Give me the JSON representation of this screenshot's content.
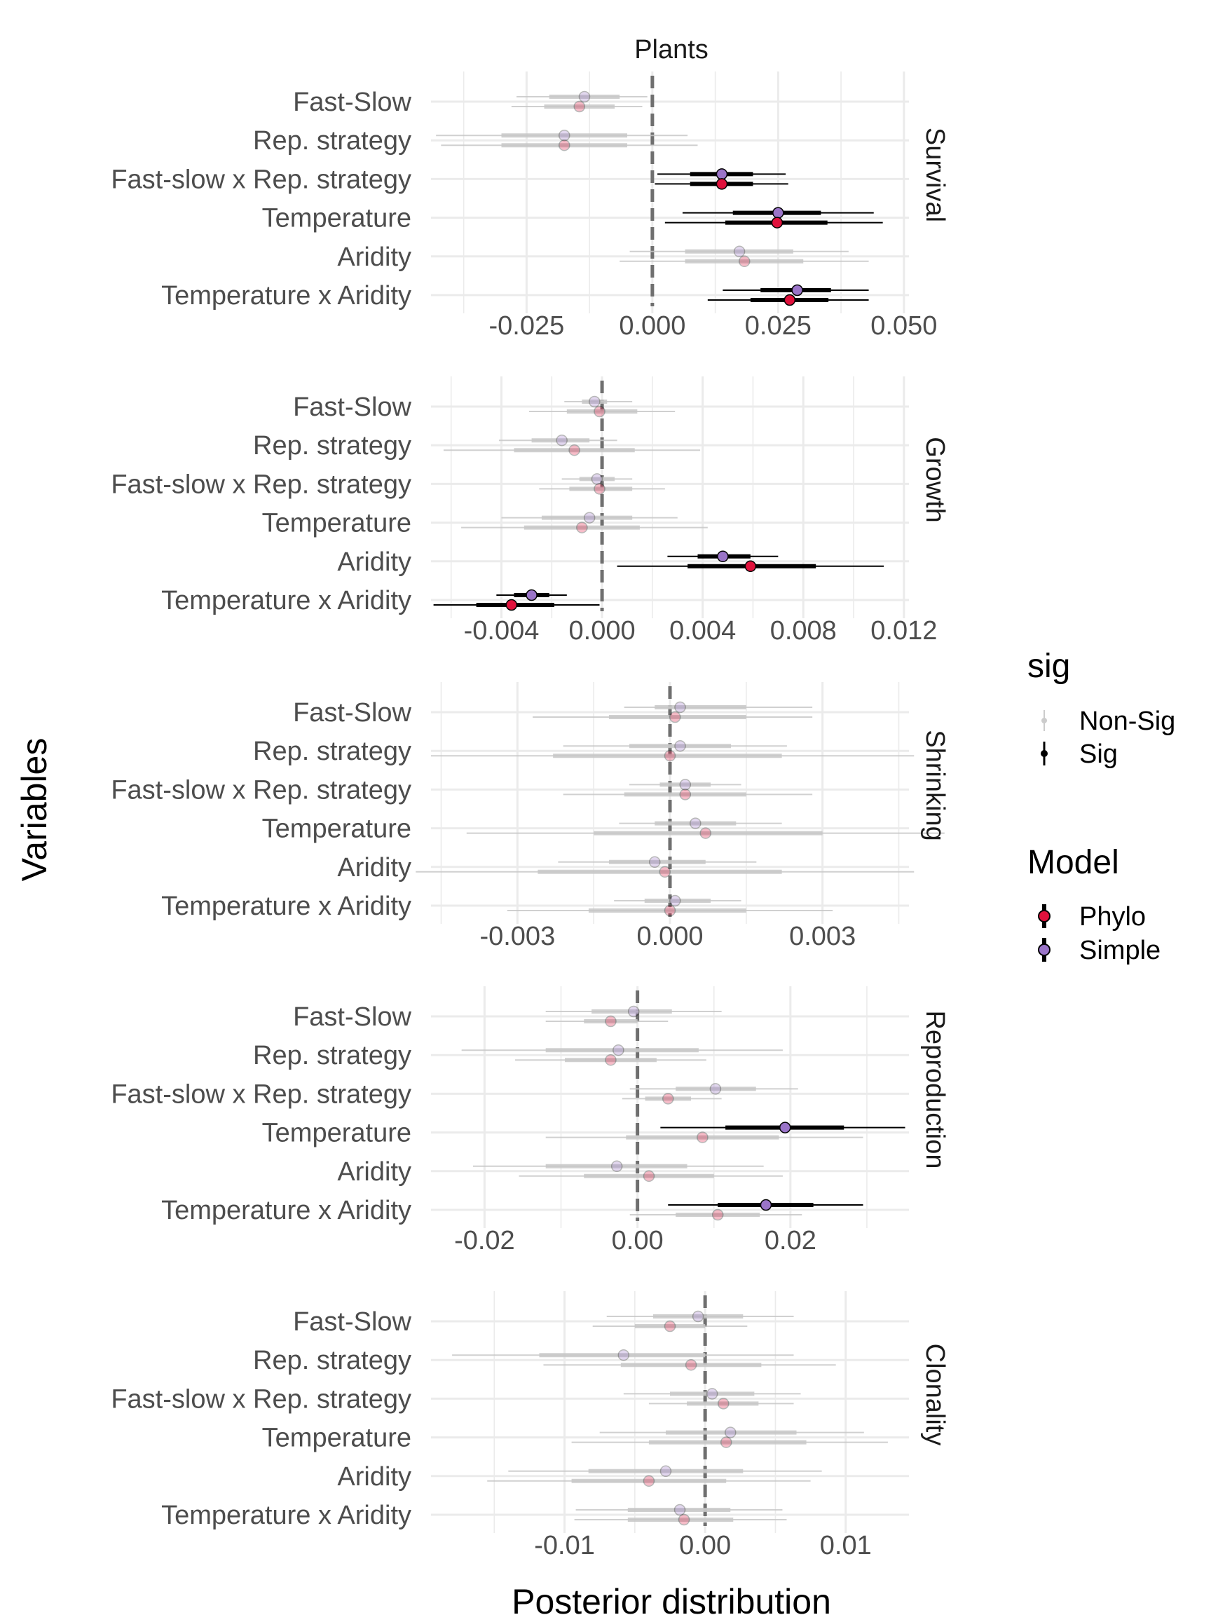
{
  "chart_data": {
    "type": "scatter",
    "title": "Plants",
    "xlabel": "Posterior distribution",
    "ylabel": "Variables",
    "variables": [
      "Fast-Slow",
      "Rep. strategy",
      "Fast-slow x Rep. strategy",
      "Temperature",
      "Aridity",
      "Temperature x Aridity"
    ],
    "legend": {
      "sig": {
        "title": "sig",
        "entries": [
          "Non-Sig",
          "Sig"
        ]
      },
      "model": {
        "title": "Model",
        "entries": [
          {
            "name": "Phylo",
            "color": "#e0113c"
          },
          {
            "name": "Simple",
            "color": "#9a74c8"
          }
        ]
      }
    },
    "panels": [
      {
        "facet": "Survival",
        "xlim": [
          -0.044,
          0.051
        ],
        "ticks": [
          -0.025,
          0,
          0.025,
          0.05
        ],
        "tick_labels": [
          "-0.025",
          "0.000",
          "0.025",
          "0.050"
        ],
        "rows": [
          {
            "model": "Simple",
            "sig": false,
            "values": [
              -0.0135,
              -0.0205,
              -0.0065,
              -0.027,
              -0.001
            ]
          },
          {
            "model": "Phylo",
            "sig": false,
            "values": [
              -0.0145,
              -0.0215,
              -0.0075,
              -0.028,
              -0.002
            ]
          },
          {
            "model": "Simple",
            "sig": false,
            "values": [
              -0.0175,
              -0.03,
              -0.005,
              -0.043,
              0.007
            ]
          },
          {
            "model": "Phylo",
            "sig": false,
            "values": [
              -0.0175,
              -0.03,
              -0.005,
              -0.042,
              0.009
            ]
          },
          {
            "model": "Simple",
            "sig": true,
            "values": [
              0.0138,
              0.0075,
              0.02,
              0.001,
              0.0265
            ]
          },
          {
            "model": "Phylo",
            "sig": true,
            "values": [
              0.0138,
              0.0075,
              0.02,
              0.0005,
              0.027
            ]
          },
          {
            "model": "Simple",
            "sig": true,
            "values": [
              0.025,
              0.016,
              0.0335,
              0.006,
              0.044
            ]
          },
          {
            "model": "Phylo",
            "sig": true,
            "values": [
              0.0248,
              0.0145,
              0.0348,
              0.0025,
              0.0458
            ]
          },
          {
            "model": "Simple",
            "sig": false,
            "values": [
              0.0173,
              0.0065,
              0.028,
              -0.0045,
              0.039
            ]
          },
          {
            "model": "Phylo",
            "sig": false,
            "values": [
              0.0183,
              0.0065,
              0.03,
              -0.0065,
              0.043
            ]
          },
          {
            "model": "Simple",
            "sig": true,
            "values": [
              0.0288,
              0.0215,
              0.0355,
              0.014,
              0.043
            ]
          },
          {
            "model": "Phylo",
            "sig": true,
            "values": [
              0.0273,
              0.0195,
              0.035,
              0.011,
              0.043
            ]
          }
        ]
      },
      {
        "facet": "Growth",
        "xlim": [
          -0.0068,
          0.0122
        ],
        "ticks": [
          -0.004,
          0,
          0.004,
          0.008,
          0.012
        ],
        "tick_labels": [
          "-0.004",
          "0.000",
          "0.004",
          "0.008",
          "0.012"
        ],
        "rows": [
          {
            "model": "Simple",
            "sig": false,
            "values": [
              -0.0003,
              -0.0008,
              0.0002,
              -0.0015,
              0.0012
            ]
          },
          {
            "model": "Phylo",
            "sig": false,
            "values": [
              -0.0001,
              -0.0014,
              0.0014,
              -0.0029,
              0.0029
            ]
          },
          {
            "model": "Simple",
            "sig": false,
            "values": [
              -0.0016,
              -0.0028,
              -0.0005,
              -0.0041,
              0.0006
            ]
          },
          {
            "model": "Phylo",
            "sig": false,
            "values": [
              -0.0011,
              -0.0035,
              0.0013,
              -0.0063,
              0.0039
            ]
          },
          {
            "model": "Simple",
            "sig": false,
            "values": [
              -0.0002,
              -0.0009,
              0.0005,
              -0.0016,
              0.0012
            ]
          },
          {
            "model": "Phylo",
            "sig": false,
            "values": [
              -0.0001,
              -0.0013,
              0.0012,
              -0.0025,
              0.0025
            ]
          },
          {
            "model": "Simple",
            "sig": false,
            "values": [
              -0.0005,
              -0.0024,
              0.0012,
              -0.004,
              0.003
            ]
          },
          {
            "model": "Phylo",
            "sig": false,
            "values": [
              -0.0008,
              -0.0031,
              0.0015,
              -0.0056,
              0.0042
            ]
          },
          {
            "model": "Simple",
            "sig": true,
            "values": [
              0.0048,
              0.0038,
              0.0059,
              0.0026,
              0.007
            ]
          },
          {
            "model": "Phylo",
            "sig": true,
            "values": [
              0.0059,
              0.0034,
              0.0085,
              0.0006,
              0.0112
            ]
          },
          {
            "model": "Simple",
            "sig": true,
            "values": [
              -0.0028,
              -0.0035,
              -0.0021,
              -0.0042,
              -0.0014
            ]
          },
          {
            "model": "Phylo",
            "sig": true,
            "values": [
              -0.0036,
              -0.005,
              -0.0019,
              -0.0067,
              -0.0001
            ]
          }
        ]
      },
      {
        "facet": "Shrinking",
        "xlim": [
          -0.0047,
          0.0047
        ],
        "ticks": [
          -0.003,
          0,
          0.003
        ],
        "tick_labels": [
          "-0.003",
          "0.000",
          "0.003"
        ],
        "rows": [
          {
            "model": "Simple",
            "sig": false,
            "values": [
              0.0002,
              -0.0003,
              0.0015,
              -0.0009,
              0.0028
            ]
          },
          {
            "model": "Phylo",
            "sig": false,
            "values": [
              0.0001,
              -0.0012,
              0.0015,
              -0.0027,
              0.0028
            ]
          },
          {
            "model": "Simple",
            "sig": false,
            "values": [
              0.0002,
              -0.0008,
              0.0012,
              -0.0021,
              0.0023
            ]
          },
          {
            "model": "Phylo",
            "sig": false,
            "values": [
              0,
              -0.0023,
              0.0022,
              -0.0047,
              0.0048
            ]
          },
          {
            "model": "Simple",
            "sig": false,
            "values": [
              0.0003,
              -0.0002,
              0.0008,
              -0.0008,
              0.0014
            ]
          },
          {
            "model": "Phylo",
            "sig": false,
            "values": [
              0.0003,
              -0.0009,
              0.0015,
              -0.0021,
              0.0028
            ]
          },
          {
            "model": "Simple",
            "sig": false,
            "values": [
              0.0005,
              -0.0003,
              0.0013,
              -0.001,
              0.0022
            ]
          },
          {
            "model": "Phylo",
            "sig": false,
            "values": [
              0.0007,
              -0.0015,
              0.003,
              -0.004,
              0.0054
            ]
          },
          {
            "model": "Simple",
            "sig": false,
            "values": [
              -0.0003,
              -0.0012,
              0.0007,
              -0.0022,
              0.0017
            ]
          },
          {
            "model": "Phylo",
            "sig": false,
            "values": [
              -0.0001,
              -0.0026,
              0.0022,
              -0.005,
              0.0048
            ]
          },
          {
            "model": "Simple",
            "sig": false,
            "values": [
              0.0001,
              -0.0005,
              0.0008,
              -0.0011,
              0.0014
            ]
          },
          {
            "model": "Phylo",
            "sig": false,
            "values": [
              0,
              -0.0016,
              0.0015,
              -0.0032,
              0.0032
            ]
          }
        ]
      },
      {
        "facet": "Reproduction",
        "xlim": [
          -0.027,
          0.0355
        ],
        "ticks": [
          -0.02,
          0,
          0.02
        ],
        "tick_labels": [
          "-0.02",
          "0.00",
          "0.02"
        ],
        "rows": [
          {
            "model": "Simple",
            "sig": false,
            "values": [
              -0.0005,
              -0.006,
              0.0045,
              -0.012,
              0.011
            ]
          },
          {
            "model": "Phylo",
            "sig": false,
            "values": [
              -0.0035,
              -0.007,
              0.0,
              -0.012,
              0.004
            ]
          },
          {
            "model": "Simple",
            "sig": false,
            "values": [
              -0.0025,
              -0.012,
              0.008,
              -0.023,
              0.019
            ]
          },
          {
            "model": "Phylo",
            "sig": false,
            "values": [
              -0.0035,
              -0.0095,
              0.0025,
              -0.016,
              0.009
            ]
          },
          {
            "model": "Simple",
            "sig": false,
            "values": [
              0.0102,
              0.005,
              0.0155,
              -0.001,
              0.021
            ]
          },
          {
            "model": "Phylo",
            "sig": false,
            "values": [
              0.004,
              0.001,
              0.007,
              -0.002,
              0.011
            ]
          },
          {
            "model": "Simple",
            "sig": true,
            "values": [
              0.0193,
              0.0115,
              0.027,
              0.003,
              0.035
            ]
          },
          {
            "model": "Phylo",
            "sig": false,
            "values": [
              0.0085,
              -0.0015,
              0.0185,
              -0.012,
              0.0295
            ]
          },
          {
            "model": "Simple",
            "sig": false,
            "values": [
              -0.0027,
              -0.012,
              0.0065,
              -0.0215,
              0.0165
            ]
          },
          {
            "model": "Phylo",
            "sig": false,
            "values": [
              0.0015,
              -0.007,
              0.01,
              -0.0155,
              0.019
            ]
          },
          {
            "model": "Simple",
            "sig": true,
            "values": [
              0.0168,
              0.0105,
              0.023,
              0.004,
              0.0295
            ]
          },
          {
            "model": "Phylo",
            "sig": false,
            "values": [
              0.0105,
              0.005,
              0.016,
              -0.001,
              0.0215
            ]
          }
        ]
      },
      {
        "facet": "Clonality",
        "xlim": [
          -0.0195,
          0.0145
        ],
        "ticks": [
          -0.01,
          0,
          0.01
        ],
        "tick_labels": [
          "-0.01",
          "0.00",
          "0.01"
        ],
        "rows": [
          {
            "model": "Simple",
            "sig": false,
            "values": [
              -0.0005,
              -0.0037,
              0.0027,
              -0.007,
              0.0063
            ]
          },
          {
            "model": "Phylo",
            "sig": false,
            "values": [
              -0.0025,
              -0.005,
              0.0,
              -0.008,
              0.003
            ]
          },
          {
            "model": "Simple",
            "sig": false,
            "values": [
              -0.0058,
              -0.0118,
              0.0,
              -0.018,
              0.0063
            ]
          },
          {
            "model": "Phylo",
            "sig": false,
            "values": [
              -0.001,
              -0.006,
              0.004,
              -0.0115,
              0.0093
            ]
          },
          {
            "model": "Simple",
            "sig": false,
            "values": [
              0.0005,
              -0.0025,
              0.0035,
              -0.0058,
              0.0068
            ]
          },
          {
            "model": "Phylo",
            "sig": false,
            "values": [
              0.0013,
              -0.0013,
              0.0038,
              -0.004,
              0.0063
            ]
          },
          {
            "model": "Simple",
            "sig": false,
            "values": [
              0.0018,
              -0.0028,
              0.0065,
              -0.0075,
              0.0113
            ]
          },
          {
            "model": "Phylo",
            "sig": false,
            "values": [
              0.0015,
              -0.004,
              0.0072,
              -0.0095,
              0.013
            ]
          },
          {
            "model": "Simple",
            "sig": false,
            "values": [
              -0.0028,
              -0.0083,
              0.0027,
              -0.014,
              0.0083
            ]
          },
          {
            "model": "Phylo",
            "sig": false,
            "values": [
              -0.004,
              -0.0095,
              0.0015,
              -0.0155,
              0.0075
            ]
          },
          {
            "model": "Simple",
            "sig": false,
            "values": [
              -0.0018,
              -0.0055,
              0.0018,
              -0.0092,
              0.0055
            ]
          },
          {
            "model": "Phylo",
            "sig": false,
            "values": [
              -0.0015,
              -0.0055,
              0.002,
              -0.0093,
              0.0058
            ]
          }
        ]
      }
    ]
  }
}
